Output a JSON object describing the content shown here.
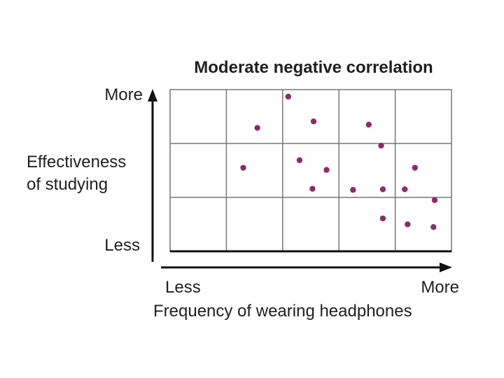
{
  "colors": {
    "point": "#8e2b6b",
    "grid": "#777777",
    "axis": "#111111",
    "text": "#1f1f1f"
  },
  "chart_data": {
    "type": "scatter",
    "title": "Moderate negative correlation",
    "xlabel": "Frequency of wearing headphones",
    "ylabel_line1": "Effectiveness",
    "ylabel_line2": "of studying",
    "x_low_label": "Less",
    "x_high_label": "More",
    "y_low_label": "Less",
    "y_high_label": "More",
    "xlim": [
      0,
      5
    ],
    "ylim": [
      0,
      3
    ],
    "grid": {
      "columns": 5,
      "rows": 3
    },
    "legend": "none",
    "points": [
      {
        "x": 2.1,
        "y": 2.87
      },
      {
        "x": 1.55,
        "y": 2.29
      },
      {
        "x": 2.55,
        "y": 2.41
      },
      {
        "x": 3.53,
        "y": 2.35
      },
      {
        "x": 3.75,
        "y": 1.96
      },
      {
        "x": 1.3,
        "y": 1.55
      },
      {
        "x": 2.3,
        "y": 1.69
      },
      {
        "x": 2.78,
        "y": 1.51
      },
      {
        "x": 4.35,
        "y": 1.55
      },
      {
        "x": 2.53,
        "y": 1.16
      },
      {
        "x": 3.25,
        "y": 1.14
      },
      {
        "x": 3.78,
        "y": 1.15
      },
      {
        "x": 4.17,
        "y": 1.15
      },
      {
        "x": 4.7,
        "y": 0.95
      },
      {
        "x": 3.78,
        "y": 0.61
      },
      {
        "x": 4.22,
        "y": 0.5
      },
      {
        "x": 4.68,
        "y": 0.45
      }
    ]
  }
}
